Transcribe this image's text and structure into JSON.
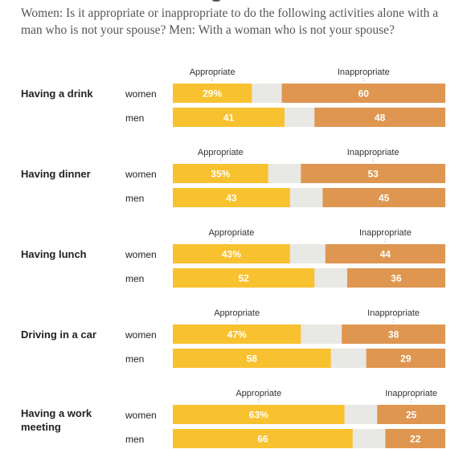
{
  "subtitle": "Women: Is it appropriate or inappropriate to do the following activities alone with a man who is not your spouse? Men: With a woman who is not your spouse?",
  "colors": {
    "appropriate": "#f8c12f",
    "neither": "#e8e8e4",
    "inappropriate": "#de9650"
  },
  "chart_data": {
    "type": "bar",
    "orientation": "horizontal",
    "stacked": true,
    "title": "",
    "xlim": [
      0,
      100
    ],
    "legend": "column headers above each activity block",
    "segment_labels": [
      "Appropriate",
      "Inappropriate"
    ],
    "activities": [
      {
        "label": "Having a drink",
        "rows": [
          {
            "group": "women",
            "appropriate": 29,
            "appropriate_label": "29%",
            "inappropriate": 60,
            "inappropriate_label": "60"
          },
          {
            "group": "men",
            "appropriate": 41,
            "appropriate_label": "41",
            "inappropriate": 48,
            "inappropriate_label": "48"
          }
        ]
      },
      {
        "label": "Having dinner",
        "rows": [
          {
            "group": "women",
            "appropriate": 35,
            "appropriate_label": "35%",
            "inappropriate": 53,
            "inappropriate_label": "53"
          },
          {
            "group": "men",
            "appropriate": 43,
            "appropriate_label": "43",
            "inappropriate": 45,
            "inappropriate_label": "45"
          }
        ]
      },
      {
        "label": "Having lunch",
        "rows": [
          {
            "group": "women",
            "appropriate": 43,
            "appropriate_label": "43%",
            "inappropriate": 44,
            "inappropriate_label": "44"
          },
          {
            "group": "men",
            "appropriate": 52,
            "appropriate_label": "52",
            "inappropriate": 36,
            "inappropriate_label": "36"
          }
        ]
      },
      {
        "label": "Driving in a car",
        "rows": [
          {
            "group": "women",
            "appropriate": 47,
            "appropriate_label": "47%",
            "inappropriate": 38,
            "inappropriate_label": "38"
          },
          {
            "group": "men",
            "appropriate": 58,
            "appropriate_label": "58",
            "inappropriate": 29,
            "inappropriate_label": "29"
          }
        ]
      },
      {
        "label": "Having a work meeting",
        "label_lines": [
          "Having a work",
          "meeting"
        ],
        "rows": [
          {
            "group": "women",
            "appropriate": 63,
            "appropriate_label": "63%",
            "inappropriate": 25,
            "inappropriate_label": "25"
          },
          {
            "group": "men",
            "appropriate": 66,
            "appropriate_label": "66",
            "inappropriate": 22,
            "inappropriate_label": "22"
          }
        ]
      }
    ]
  }
}
